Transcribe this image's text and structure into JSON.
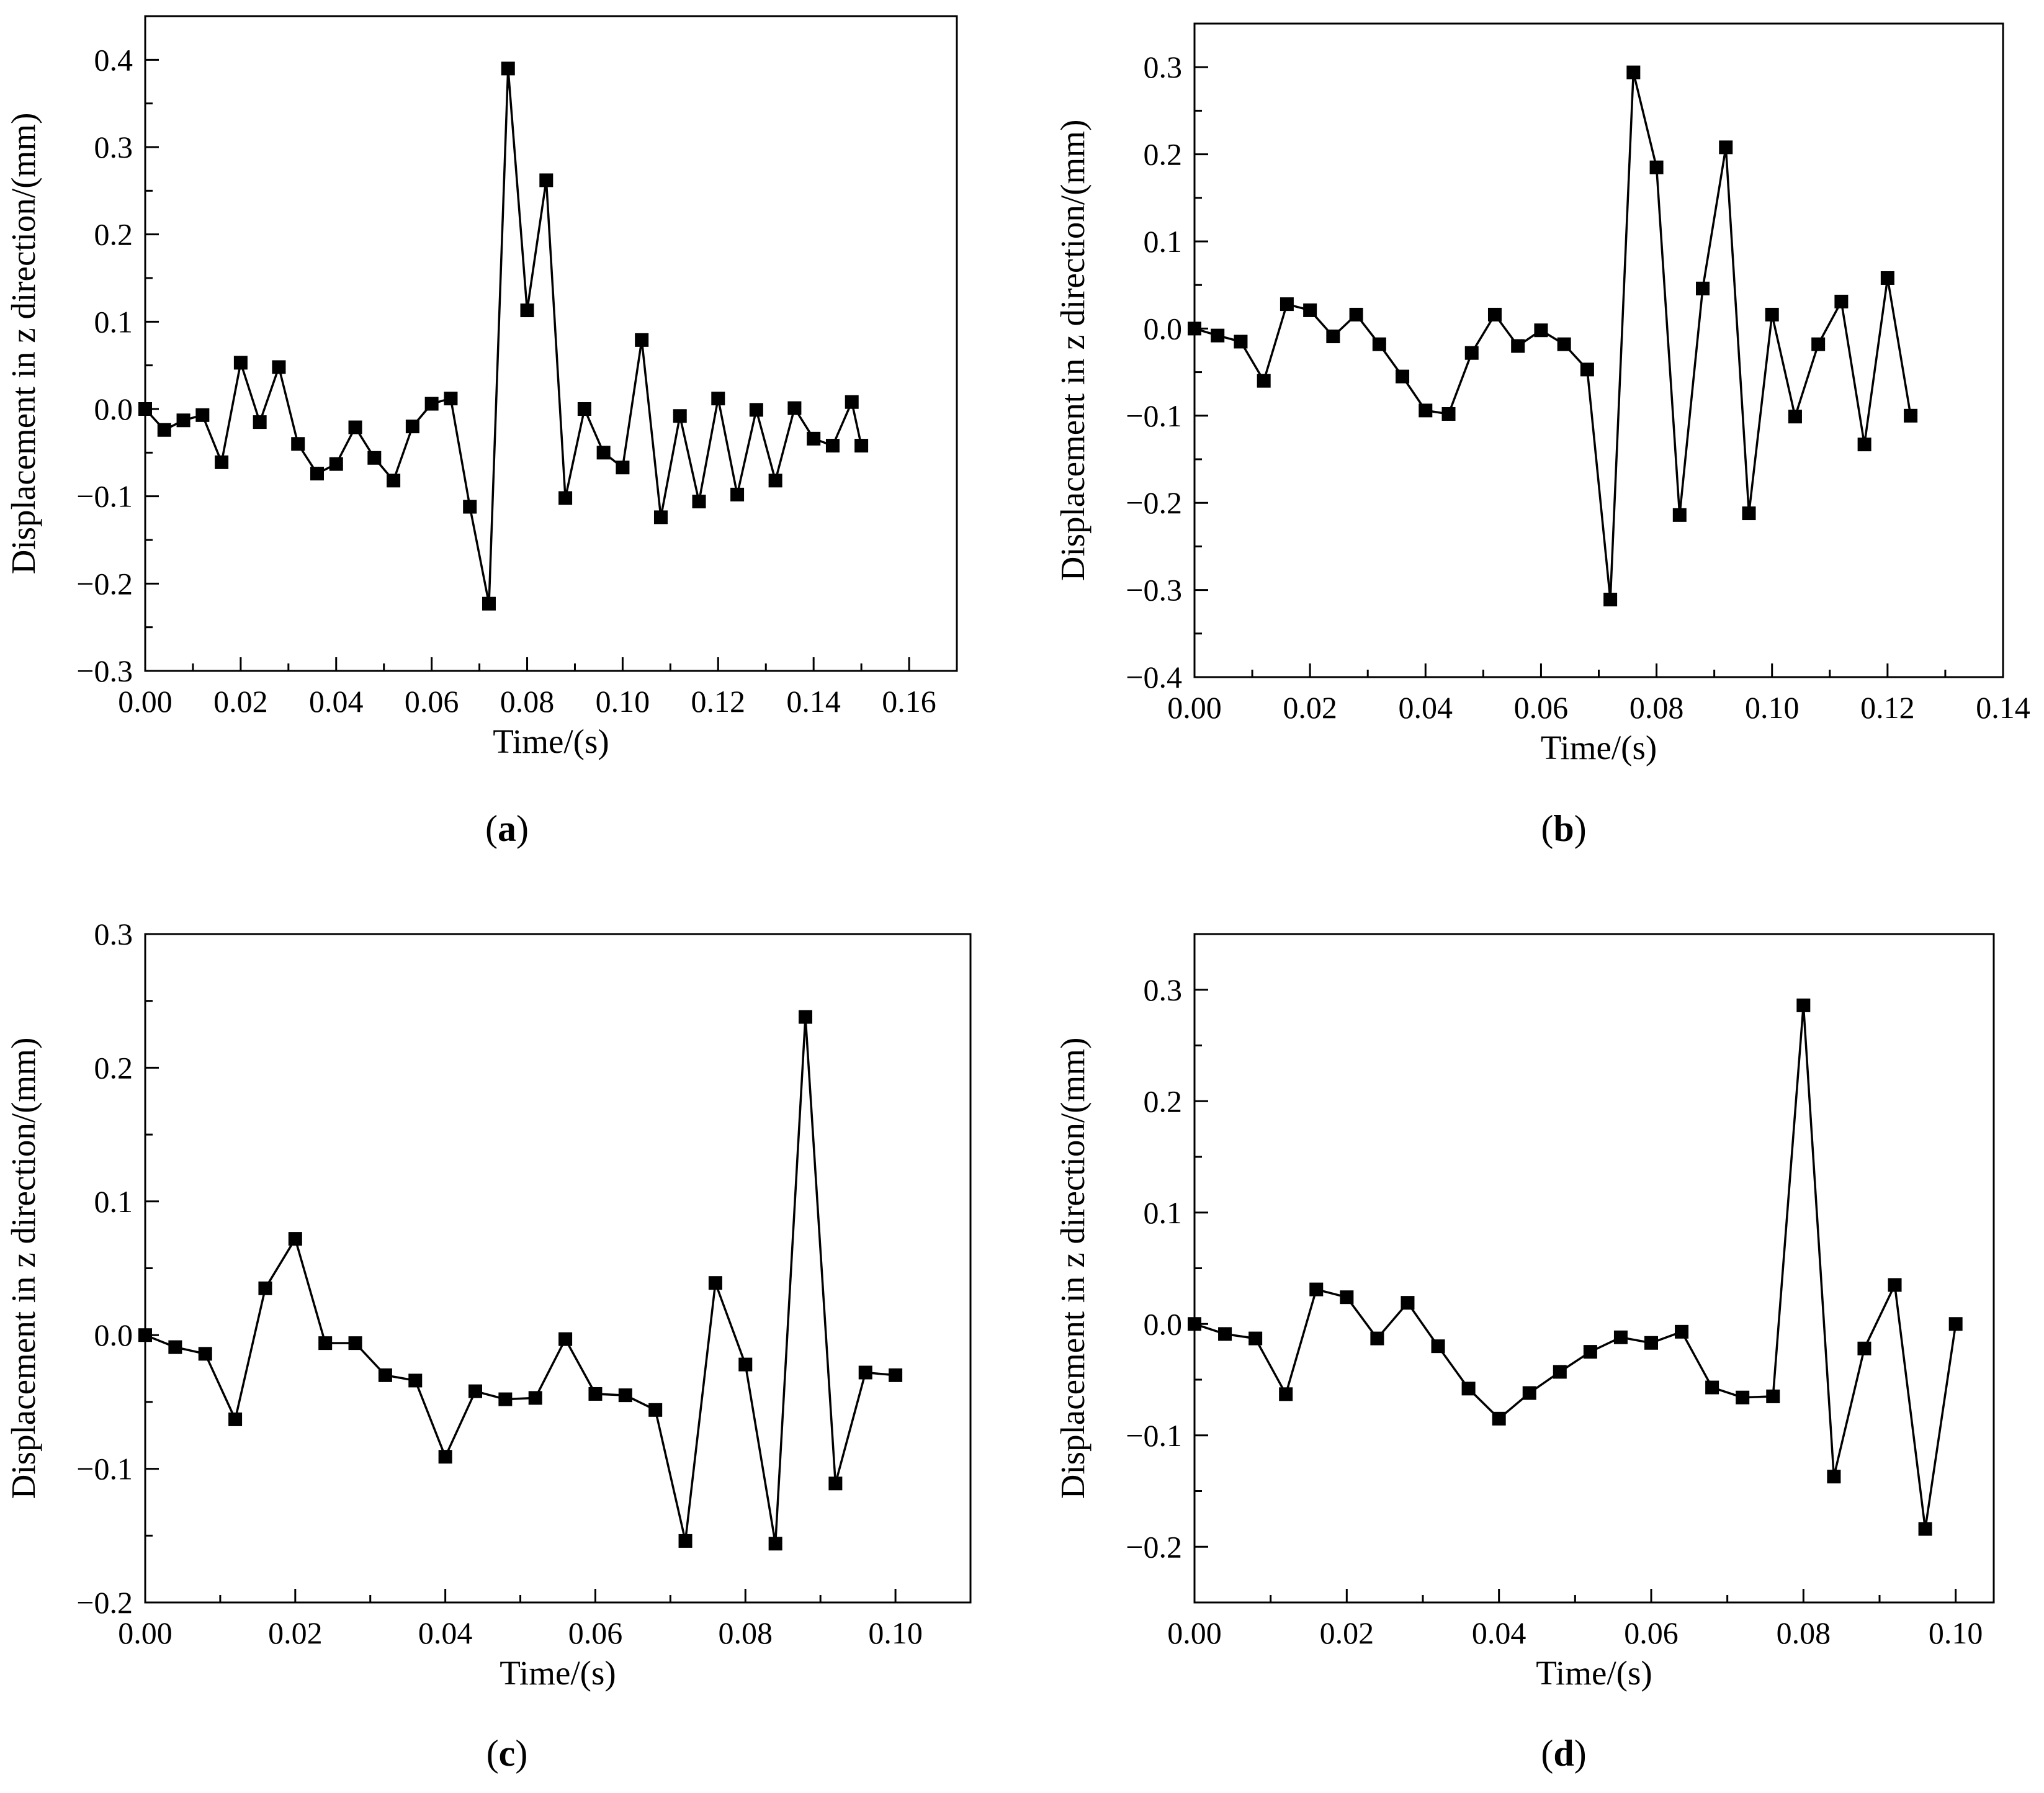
{
  "chart_data": [
    {
      "id": "a",
      "type": "line",
      "panel_label": {
        "open": "(",
        "letter": "a",
        "close": ")"
      },
      "xlabel": "Time/(s)",
      "ylabel": "Displacement in z direction/(mm)",
      "xlim": [
        0,
        0.17
      ],
      "ylim": [
        -0.3,
        0.45
      ],
      "xticks": [
        0,
        0.02,
        0.04,
        0.06,
        0.08,
        0.1,
        0.12,
        0.14,
        0.16
      ],
      "xtick_labels": [
        "0.00",
        "0.02",
        "0.04",
        "0.06",
        "0.08",
        "0.10",
        "0.12",
        "0.14",
        "0.16"
      ],
      "yticks": [
        -0.3,
        -0.2,
        -0.1,
        0.0,
        0.1,
        0.2,
        0.3,
        0.4
      ],
      "ytick_labels": [
        "−0.3",
        "−0.2",
        "−0.1",
        "0.0",
        "0.1",
        "0.2",
        "0.3",
        "0.4"
      ],
      "marker": "square",
      "x": [
        0,
        0.004,
        0.008,
        0.012,
        0.016,
        0.02,
        0.024,
        0.028,
        0.032,
        0.036,
        0.04,
        0.044,
        0.048,
        0.052,
        0.056,
        0.06,
        0.064,
        0.068,
        0.072,
        0.076,
        0.08,
        0.084,
        0.088,
        0.092,
        0.096,
        0.1,
        0.104,
        0.108,
        0.112,
        0.116,
        0.12,
        0.124,
        0.128,
        0.132,
        0.136,
        0.14,
        0.144,
        0.148,
        0.15
      ],
      "y": [
        0.0,
        -0.024,
        -0.013,
        -0.007,
        -0.061,
        0.053,
        -0.015,
        0.048,
        -0.04,
        -0.074,
        -0.063,
        -0.021,
        -0.056,
        -0.082,
        -0.02,
        0.006,
        0.012,
        -0.112,
        -0.223,
        0.39,
        0.113,
        0.262,
        -0.102,
        0.0,
        -0.05,
        -0.067,
        0.079,
        -0.124,
        -0.008,
        -0.106,
        0.012,
        -0.098,
        -0.001,
        -0.082,
        0.001,
        -0.034,
        -0.042,
        0.008,
        -0.042
      ]
    },
    {
      "id": "b",
      "type": "line",
      "panel_label": {
        "open": "(",
        "letter": "b",
        "close": ")"
      },
      "xlabel": "Time/(s)",
      "ylabel": "Displacement in z direction/(mm)",
      "xlim": [
        0,
        0.14
      ],
      "ylim": [
        -0.4,
        0.35
      ],
      "xticks": [
        0,
        0.02,
        0.04,
        0.06,
        0.08,
        0.1,
        0.12,
        0.14
      ],
      "xtick_labels": [
        "0.00",
        "0.02",
        "0.04",
        "0.06",
        "0.08",
        "0.10",
        "0.12",
        "0.14"
      ],
      "yticks": [
        -0.4,
        -0.3,
        -0.2,
        -0.1,
        0.0,
        0.1,
        0.2,
        0.3
      ],
      "ytick_labels": [
        "−0.4",
        "−0.3",
        "−0.2",
        "−0.1",
        "0.0",
        "0.1",
        "0.2",
        "0.3"
      ],
      "marker": "square",
      "x": [
        0,
        0.004,
        0.008,
        0.012,
        0.016,
        0.02,
        0.024,
        0.028,
        0.032,
        0.036,
        0.04,
        0.044,
        0.048,
        0.052,
        0.056,
        0.06,
        0.064,
        0.068,
        0.072,
        0.076,
        0.08,
        0.084,
        0.088,
        0.092,
        0.096,
        0.1,
        0.104,
        0.108,
        0.112,
        0.116,
        0.12,
        0.124
      ],
      "y": [
        0.0,
        -0.008,
        -0.015,
        -0.06,
        0.028,
        0.021,
        -0.009,
        0.016,
        -0.018,
        -0.055,
        -0.094,
        -0.098,
        -0.028,
        0.016,
        -0.02,
        -0.002,
        -0.018,
        -0.047,
        -0.311,
        0.294,
        0.185,
        -0.214,
        0.046,
        0.208,
        -0.212,
        0.016,
        -0.101,
        -0.018,
        0.031,
        -0.133,
        0.058,
        -0.1
      ]
    },
    {
      "id": "c",
      "type": "line",
      "panel_label": {
        "open": "(",
        "letter": "c",
        "close": ")"
      },
      "xlabel": "Time/(s)",
      "ylabel": "Displacement in z direction/(mm)",
      "xlim": [
        0,
        0.11
      ],
      "ylim": [
        -0.2,
        0.3
      ],
      "xticks": [
        0,
        0.02,
        0.04,
        0.06,
        0.08,
        0.1
      ],
      "xtick_labels": [
        "0.00",
        "0.02",
        "0.04",
        "0.06",
        "0.08",
        "0.10"
      ],
      "yticks": [
        -0.2,
        -0.1,
        0.0,
        0.1,
        0.2,
        0.3
      ],
      "ytick_labels": [
        "−0.2",
        "−0.1",
        "0.0",
        "0.1",
        "0.2",
        "0.3"
      ],
      "marker": "square",
      "x": [
        0,
        0.004,
        0.008,
        0.012,
        0.016,
        0.02,
        0.024,
        0.028,
        0.032,
        0.036,
        0.04,
        0.044,
        0.048,
        0.052,
        0.056,
        0.06,
        0.064,
        0.068,
        0.072,
        0.076,
        0.08,
        0.084,
        0.088,
        0.092,
        0.096,
        0.1
      ],
      "y": [
        0.0,
        -0.009,
        -0.014,
        -0.063,
        0.035,
        0.072,
        -0.006,
        -0.006,
        -0.03,
        -0.034,
        -0.091,
        -0.042,
        -0.048,
        -0.047,
        -0.003,
        -0.044,
        -0.045,
        -0.056,
        -0.154,
        0.039,
        -0.022,
        -0.156,
        0.238,
        -0.111,
        -0.028,
        -0.03
      ]
    },
    {
      "id": "d",
      "type": "line",
      "panel_label": {
        "open": "(",
        "letter": "d",
        "close": ")"
      },
      "xlabel": "Time/(s)",
      "ylabel": "Displacement in z direction/(mm)",
      "xlim": [
        0,
        0.105
      ],
      "ylim": [
        -0.25,
        0.35
      ],
      "xticks": [
        0,
        0.02,
        0.04,
        0.06,
        0.08,
        0.1
      ],
      "xtick_labels": [
        "0.00",
        "0.02",
        "0.04",
        "0.06",
        "0.08",
        "0.10"
      ],
      "yticks": [
        -0.2,
        -0.1,
        0.0,
        0.1,
        0.2,
        0.3
      ],
      "ytick_labels": [
        "−0.2",
        "−0.1",
        "0.0",
        "0.1",
        "0.2",
        "0.3"
      ],
      "marker": "square",
      "x": [
        0,
        0.004,
        0.008,
        0.012,
        0.016,
        0.02,
        0.024,
        0.028,
        0.032,
        0.036,
        0.04,
        0.044,
        0.048,
        0.052,
        0.056,
        0.06,
        0.064,
        0.068,
        0.072,
        0.076,
        0.08,
        0.084,
        0.088,
        0.092,
        0.096,
        0.1
      ],
      "y": [
        0.0,
        -0.009,
        -0.013,
        -0.063,
        0.031,
        0.024,
        -0.013,
        0.019,
        -0.02,
        -0.058,
        -0.085,
        -0.062,
        -0.043,
        -0.025,
        -0.012,
        -0.017,
        -0.007,
        -0.057,
        -0.066,
        -0.065,
        0.286,
        -0.137,
        -0.022,
        0.035,
        -0.184,
        0.0
      ]
    }
  ]
}
